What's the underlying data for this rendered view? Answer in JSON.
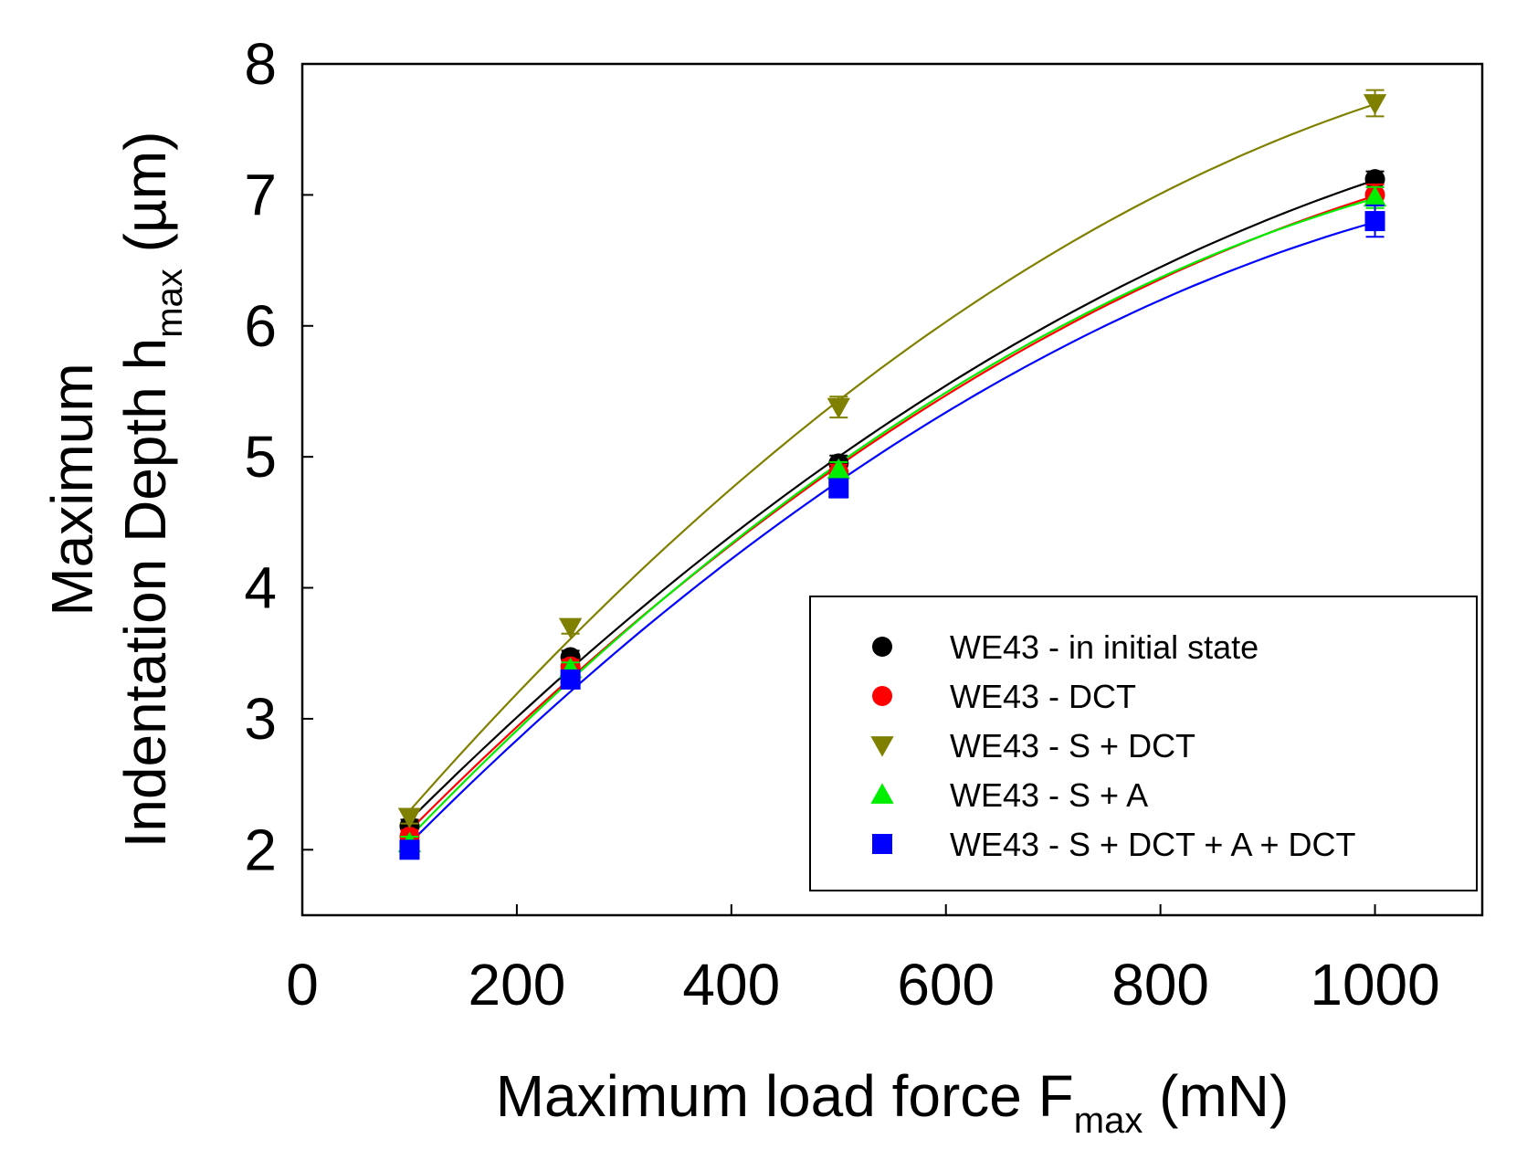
{
  "chart_data": {
    "type": "scatter",
    "title": "",
    "xlabel": {
      "main": "Maximum load force F",
      "sub": "max",
      "tail": " (mN)"
    },
    "ylabel": {
      "line1": "Maximum",
      "main": "Indentation Depth h",
      "sub": "max",
      "tail": " (µm)"
    },
    "xlim": [
      0,
      1100
    ],
    "ylim": [
      1.5,
      8
    ],
    "xticks": [
      0,
      200,
      400,
      600,
      800,
      1000
    ],
    "yticks": [
      2,
      3,
      4,
      5,
      6,
      7,
      8
    ],
    "xtick_labels": [
      "0",
      "200",
      "400",
      "600",
      "800",
      "1000"
    ],
    "ytick_labels": [
      "2",
      "3",
      "4",
      "5",
      "6",
      "7",
      "8"
    ],
    "legend_position": "bottom-right",
    "fit_lines": true,
    "series": [
      {
        "name": "WE43 - in initial state",
        "marker": "circle",
        "color": "#000000",
        "x": [
          100,
          250,
          500,
          1000
        ],
        "y": [
          2.18,
          3.47,
          4.95,
          7.12
        ],
        "err": [
          0.05,
          0.05,
          0.06,
          0.06
        ]
      },
      {
        "name": "WE43 - DCT",
        "marker": "circle",
        "color": "#ff0000",
        "x": [
          100,
          250,
          500,
          1000
        ],
        "y": [
          2.1,
          3.4,
          4.88,
          7.0
        ],
        "err": [
          0.05,
          0.05,
          0.06,
          0.08
        ]
      },
      {
        "name": "WE43 - S + DCT",
        "marker": "triangle-down",
        "color": "#808000",
        "x": [
          100,
          250,
          500,
          1000
        ],
        "y": [
          2.25,
          3.7,
          5.38,
          7.7
        ],
        "err": [
          0.05,
          0.05,
          0.08,
          0.1
        ]
      },
      {
        "name": "WE43 - S + A",
        "marker": "triangle-up",
        "color": "#00ee00",
        "x": [
          100,
          250,
          500,
          1000
        ],
        "y": [
          2.05,
          3.38,
          4.9,
          6.98
        ],
        "err": [
          0.05,
          0.05,
          0.06,
          0.08
        ]
      },
      {
        "name": "WE43 - S + DCT + A + DCT",
        "marker": "square",
        "color": "#0000ff",
        "x": [
          100,
          250,
          500,
          1000
        ],
        "y": [
          2.0,
          3.3,
          4.76,
          6.8
        ],
        "err": [
          0.04,
          0.05,
          0.07,
          0.12
        ]
      }
    ]
  }
}
